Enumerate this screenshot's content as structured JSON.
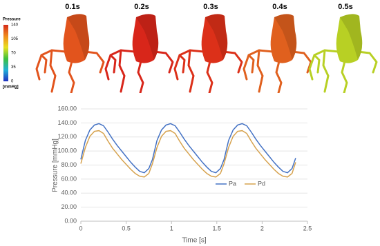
{
  "panels": {
    "labels": [
      "0.1s",
      "0.2s",
      "0.3s",
      "0.4s",
      "0.5s"
    ]
  },
  "colorbar": {
    "title": "Pressure",
    "ticks": [
      140,
      105,
      70,
      35,
      0
    ],
    "unit": "[mmHg]"
  },
  "chart_data": {
    "type": "line",
    "xlabel": "Time [s]",
    "ylabel": "Pressure [mmHg]",
    "x": [
      0,
      0.05,
      0.1,
      0.15,
      0.2,
      0.25,
      0.3,
      0.35,
      0.4,
      0.45,
      0.5,
      0.55,
      0.6,
      0.65,
      0.7,
      0.75,
      0.79,
      0.84,
      0.89,
      0.94,
      0.99,
      1.04,
      1.09,
      1.14,
      1.19,
      1.24,
      1.29,
      1.34,
      1.39,
      1.44,
      1.49,
      1.54,
      1.58,
      1.63,
      1.68,
      1.73,
      1.78,
      1.83,
      1.88,
      1.93,
      1.98,
      2.03,
      2.08,
      2.13,
      2.18,
      2.23,
      2.28,
      2.33,
      2.37
    ],
    "series": [
      {
        "name": "Pa",
        "color": "#4472c4",
        "values": [
          88,
          115,
          130,
          137,
          139,
          136,
          127,
          117,
          108,
          100,
          92,
          84,
          77,
          71,
          69,
          75,
          88,
          115,
          130,
          137,
          139,
          136,
          127,
          117,
          108,
          100,
          92,
          84,
          77,
          71,
          69,
          75,
          88,
          115,
          130,
          137,
          139,
          136,
          127,
          117,
          108,
          100,
          92,
          84,
          77,
          71,
          69,
          75,
          90
        ]
      },
      {
        "name": "Pd",
        "color": "#d6a24e",
        "values": [
          82,
          105,
          121,
          128,
          129,
          125,
          114,
          104,
          96,
          88,
          81,
          74,
          68,
          64,
          63,
          68,
          82,
          105,
          121,
          128,
          129,
          125,
          114,
          104,
          96,
          88,
          81,
          74,
          68,
          64,
          63,
          68,
          82,
          105,
          121,
          128,
          129,
          125,
          114,
          104,
          96,
          88,
          81,
          74,
          68,
          64,
          63,
          68,
          84
        ]
      }
    ],
    "xlim": [
      0,
      2.5
    ],
    "xticks": [
      0,
      0.5,
      1,
      1.5,
      2,
      2.5
    ],
    "ylim": [
      0,
      160
    ],
    "yticks": [
      {
        "value": 0,
        "label": "0.00"
      },
      {
        "value": 20,
        "label": "20.00"
      },
      {
        "value": 40,
        "label": "40.00"
      },
      {
        "value": 60,
        "label": "60.00"
      },
      {
        "value": 80,
        "label": "80.00"
      },
      {
        "value": 100,
        "label": "100.00"
      },
      {
        "value": 120,
        "label": "120.00"
      },
      {
        "value": 140,
        "label": "140.00"
      },
      {
        "value": 160,
        "label": "160.00"
      }
    ],
    "grid": true,
    "legend": "center-right"
  }
}
